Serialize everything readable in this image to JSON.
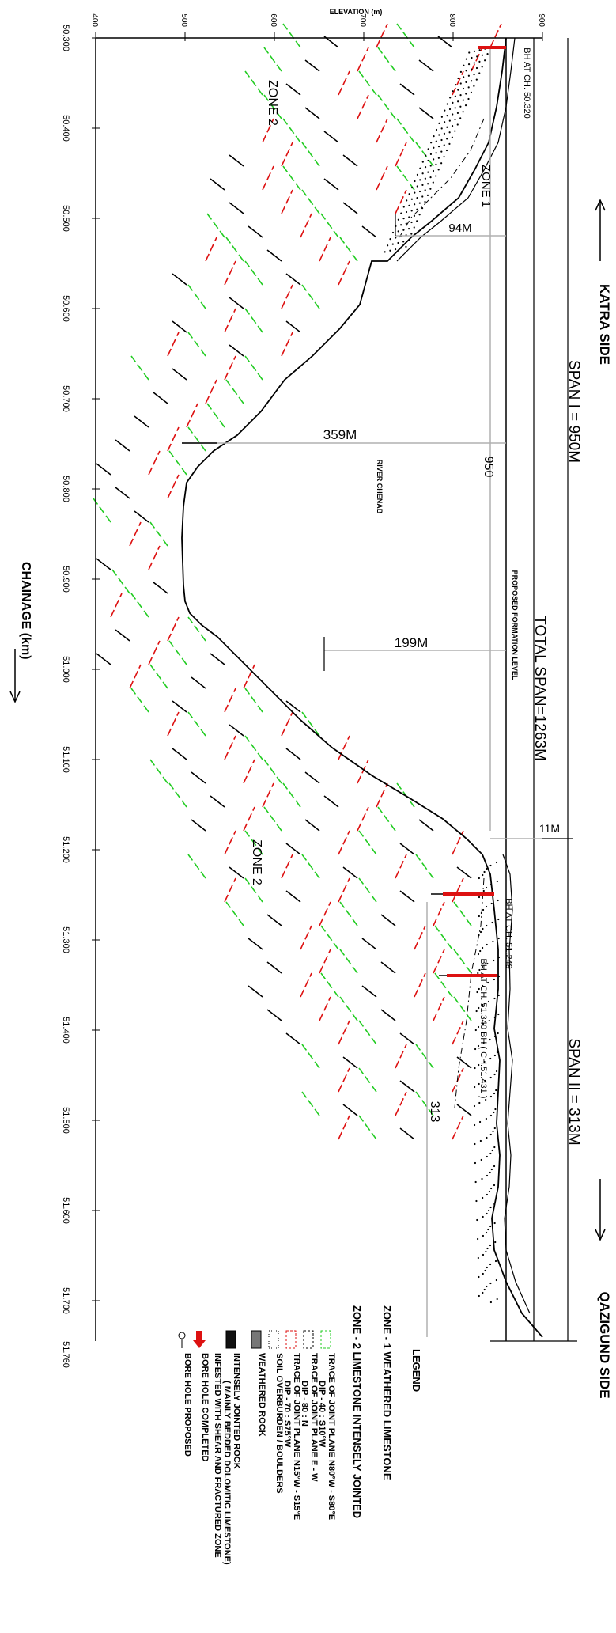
{
  "axis": {
    "elevation_title": "ELEVATION (m)",
    "elevation_ticks": [
      "400",
      "500",
      "600",
      "700",
      "800",
      "900"
    ],
    "chainage_title": "CHAINAGE (km)",
    "chainage_ticks": [
      "50.300",
      "50.400",
      "50.500",
      "50.600",
      "50.700",
      "50.800",
      "50.900",
      "51.000",
      "51.100",
      "51.200",
      "51.300",
      "51.400",
      "51.500",
      "51.600",
      "51.700",
      "51.760"
    ]
  },
  "sides": {
    "left": "KATRA SIDE",
    "right": "QAZIGUND SIDE"
  },
  "spans": {
    "span1": "SPAN I = 950M",
    "total": "TOTAL SPAN=1263M",
    "span2": "SPAN II = 313M"
  },
  "dimensions": {
    "d94": "94M",
    "d359": "359M",
    "d199": "199M",
    "d11": "11M",
    "d950": "950",
    "d313": "313"
  },
  "labels": {
    "zone1": "ZONE 1",
    "zone2_top": "ZONE 2",
    "zone2_bottom": "ZONE 2",
    "river": "RIVER CHENAB",
    "formation": "PROPOSED FORMATION LEVEL",
    "bh1": "BH AT CH. 50.320",
    "bh2": "BH AT CH. 51.249",
    "bh3": "BH AT CH. 51.340 BH ( CH.51.431 )"
  },
  "legend": {
    "title": "LEGEND",
    "zone1": "ZONE - 1  WEATHERED LIMESTONE",
    "zone2": "ZONE - 2  LIMESTONE INTENSELY JOINTED",
    "items": [
      {
        "line1": "TRACE OF JOINT PLANE N80°W - S80°E",
        "line2": "DIP - 40 : S10°W",
        "symbol": "green-dash"
      },
      {
        "line1": "TRACE OF JOINT PLANE E - W",
        "line2": "DIP - 80 : N",
        "symbol": "black-dash"
      },
      {
        "line1": "TRACE OF JOINT PLANE N15°W - S15°E",
        "line2": "DIP - 70 : S75°W",
        "symbol": "red-dash"
      },
      {
        "line1": "SOIL OVERBURDEN / BOULDERS",
        "line2": "",
        "symbol": "dots"
      },
      {
        "line1": "WEATHERED ROCK",
        "line2": "",
        "symbol": "hatch"
      },
      {
        "line1": "INTENSELY JOINTED ROCK",
        "line2": "( MAINLY BEDDED DOLOMITIC LIMESTONE)",
        "line3": "INFESTED WITH SHEAR AND FRACTURED ZONE",
        "symbol": "solid"
      },
      {
        "line1": "BORE HOLE COMPLETED",
        "line2": "",
        "symbol": "red-arrow"
      },
      {
        "line1": "BORE HOLE PROPOSED",
        "line2": "",
        "symbol": "circle"
      }
    ]
  },
  "colors": {
    "line": "#000000",
    "green": "#22cc22",
    "red": "#dd1111",
    "dim": "#b0b0b0"
  }
}
